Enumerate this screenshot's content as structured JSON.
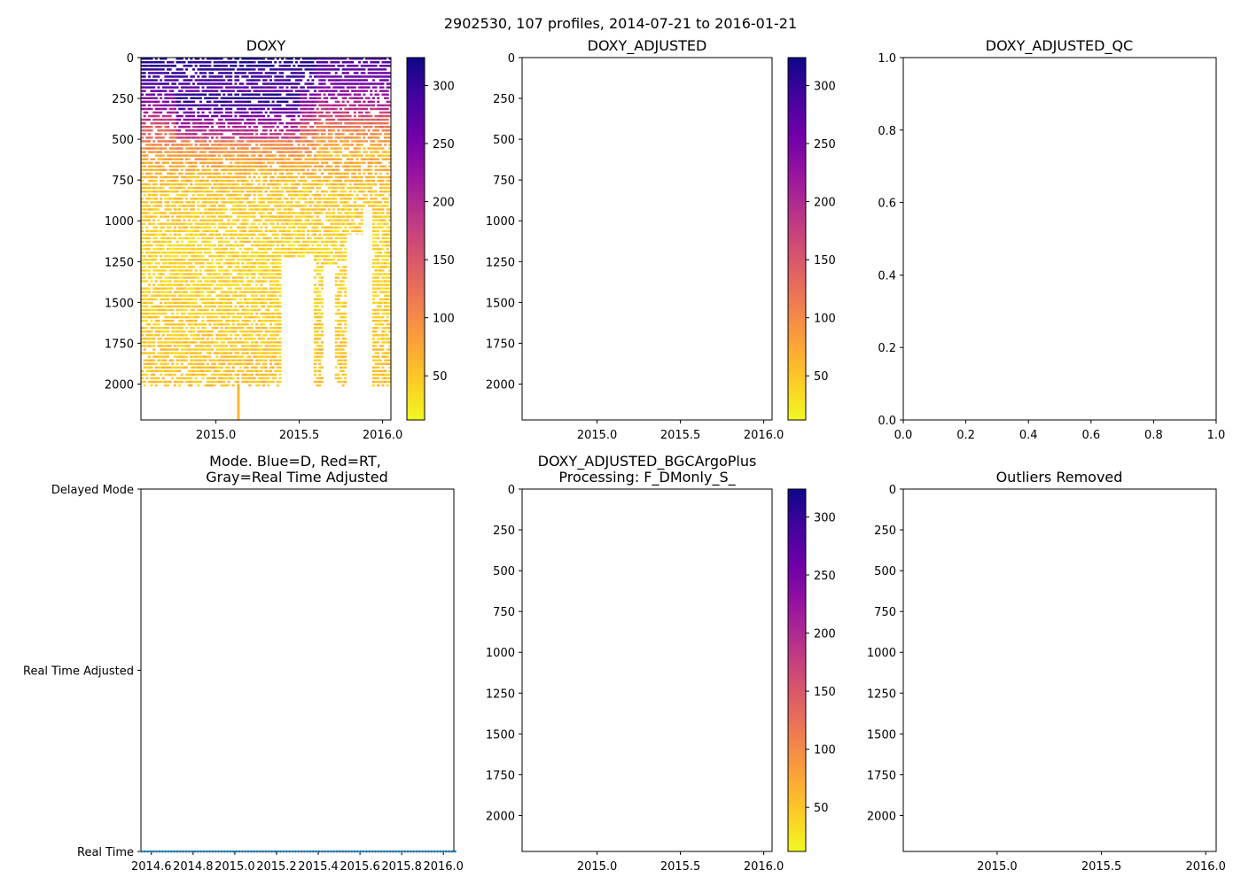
{
  "figure": {
    "title": "2902530, 107 profiles, 2014-07-21 to 2016-01-21"
  },
  "colormap": {
    "name": "plasma",
    "stops": [
      "#0d0887",
      "#46039f",
      "#7201a8",
      "#9c179e",
      "#bd3786",
      "#d8576b",
      "#ed7953",
      "#fb9f3a",
      "#fdca26",
      "#f0f921"
    ]
  },
  "chart_data": [
    {
      "id": "doxy",
      "type": "heatmap",
      "title": "DOXY",
      "xlabel": "",
      "ylabel": "",
      "xlim": [
        2014.55,
        2016.05
      ],
      "ylim": [
        2220,
        0
      ],
      "xticks": [
        2015.0,
        2015.5,
        2016.0
      ],
      "xtick_labels": [
        "2015.0",
        "2015.5",
        "2016.0"
      ],
      "yticks": [
        0,
        250,
        500,
        750,
        1000,
        1250,
        1500,
        1750,
        2000
      ],
      "ytick_labels": [
        "0",
        "250",
        "500",
        "750",
        "1000",
        "1250",
        "1500",
        "1750",
        "2000"
      ],
      "grid": false,
      "has_data": true,
      "profiles": 107,
      "time_start": 2014.55,
      "time_end": 2016.05,
      "max_depth": 2000,
      "deep_gaps": [
        {
          "x0": 2015.38,
          "x1": 2015.52,
          "top": 1230
        },
        {
          "x0": 2015.52,
          "x1": 2015.58,
          "top": 1200
        },
        {
          "x0": 2015.64,
          "x1": 2015.71,
          "top": 1270
        },
        {
          "x0": 2015.77,
          "x1": 2015.88,
          "top": 1080
        },
        {
          "x0": 2015.88,
          "x1": 2015.93,
          "top": 920
        }
      ],
      "spike": {
        "x": 2015.135,
        "depth_from": 2000,
        "depth_to": 2220,
        "value": 60
      },
      "value_profile": [
        {
          "depth": 0,
          "value": 315
        },
        {
          "depth": 150,
          "value": 285
        },
        {
          "depth": 300,
          "value": 220
        },
        {
          "depth": 450,
          "value": 130
        },
        {
          "depth": 600,
          "value": 80
        },
        {
          "depth": 800,
          "value": 50
        },
        {
          "depth": 1200,
          "value": 38
        },
        {
          "depth": 1600,
          "value": 45
        },
        {
          "depth": 2000,
          "value": 55
        }
      ]
    },
    {
      "id": "doxy_adjusted",
      "type": "heatmap",
      "title": "DOXY_ADJUSTED",
      "xlim": [
        2014.55,
        2016.05
      ],
      "ylim": [
        2220,
        0
      ],
      "xticks": [
        2015.0,
        2015.5,
        2016.0
      ],
      "xtick_labels": [
        "2015.0",
        "2015.5",
        "2016.0"
      ],
      "yticks": [
        0,
        250,
        500,
        750,
        1000,
        1250,
        1500,
        1750,
        2000
      ],
      "ytick_labels": [
        "0",
        "250",
        "500",
        "750",
        "1000",
        "1250",
        "1500",
        "1750",
        "2000"
      ],
      "has_data": false
    },
    {
      "id": "doxy_adjusted_qc",
      "type": "scatter",
      "title": "DOXY_ADJUSTED_QC",
      "xlim": [
        0,
        1
      ],
      "ylim": [
        0,
        1
      ],
      "xticks": [
        0.0,
        0.2,
        0.4,
        0.6,
        0.8,
        1.0
      ],
      "xtick_labels": [
        "0.0",
        "0.2",
        "0.4",
        "0.6",
        "0.8",
        "1.0"
      ],
      "yticks": [
        0.0,
        0.2,
        0.4,
        0.6,
        0.8,
        1.0
      ],
      "ytick_labels": [
        "0.0",
        "0.2",
        "0.4",
        "0.6",
        "0.8",
        "1.0"
      ],
      "has_data": false
    },
    {
      "id": "mode",
      "type": "scatter",
      "title_lines": [
        "Mode. Blue=D, Red=RT,",
        "Gray=Real Time Adjusted"
      ],
      "xlim": [
        2014.55,
        2016.05
      ],
      "ylim": [
        0,
        2
      ],
      "xticks": [
        2014.6,
        2014.8,
        2015.0,
        2015.2,
        2015.4,
        2015.6,
        2015.8,
        2016.0
      ],
      "xtick_labels": [
        "2014.6",
        "2014.8",
        "2015.0",
        "2015.2",
        "2015.4",
        "2015.6",
        "2015.8",
        "2016.0"
      ],
      "yticks": [
        0,
        1,
        2
      ],
      "ytick_labels": [
        "Real Time",
        "Real Time Adjusted",
        "Delayed Mode"
      ],
      "point_color": "#1f77b4",
      "series": [
        {
          "name": "mode",
          "x_start": 2014.554,
          "x_end": 2016.056,
          "count": 107,
          "y": 0
        }
      ]
    },
    {
      "id": "doxy_bgc",
      "type": "heatmap",
      "title_lines": [
        "DOXY_ADJUSTED_BGCArgoPlus",
        "Processing: F_DMonly_S_"
      ],
      "xlim": [
        2014.55,
        2016.05
      ],
      "ylim": [
        2220,
        0
      ],
      "xticks": [
        2015.0,
        2015.5,
        2016.0
      ],
      "xtick_labels": [
        "2015.0",
        "2015.5",
        "2016.0"
      ],
      "yticks": [
        0,
        250,
        500,
        750,
        1000,
        1250,
        1500,
        1750,
        2000
      ],
      "ytick_labels": [
        "0",
        "250",
        "500",
        "750",
        "1000",
        "1250",
        "1500",
        "1750",
        "2000"
      ],
      "has_data": false
    },
    {
      "id": "outliers",
      "type": "heatmap",
      "title": "Outliers Removed",
      "xlim": [
        2014.55,
        2016.05
      ],
      "ylim": [
        2220,
        0
      ],
      "xticks": [
        2015.0,
        2015.5,
        2016.0
      ],
      "xtick_labels": [
        "2015.0",
        "2015.5",
        "2016.0"
      ],
      "yticks": [
        0,
        250,
        500,
        750,
        1000,
        1250,
        1500,
        1750,
        2000
      ],
      "ytick_labels": [
        "0",
        "250",
        "500",
        "750",
        "1000",
        "1250",
        "1500",
        "1750",
        "2000"
      ],
      "has_data": false
    }
  ],
  "colorbars": [
    {
      "id": "cb1",
      "range": [
        12,
        324
      ],
      "ticks": [
        50,
        100,
        150,
        200,
        250,
        300
      ],
      "tick_labels": [
        "50",
        "100",
        "150",
        "200",
        "250",
        "300"
      ]
    },
    {
      "id": "cb2",
      "range": [
        12,
        324
      ],
      "ticks": [
        50,
        100,
        150,
        200,
        250,
        300
      ],
      "tick_labels": [
        "50",
        "100",
        "150",
        "200",
        "250",
        "300"
      ]
    },
    {
      "id": "cb3",
      "range": [
        12,
        324
      ],
      "ticks": [
        50,
        100,
        150,
        200,
        250,
        300
      ],
      "tick_labels": [
        "50",
        "100",
        "150",
        "200",
        "250",
        "300"
      ]
    }
  ]
}
